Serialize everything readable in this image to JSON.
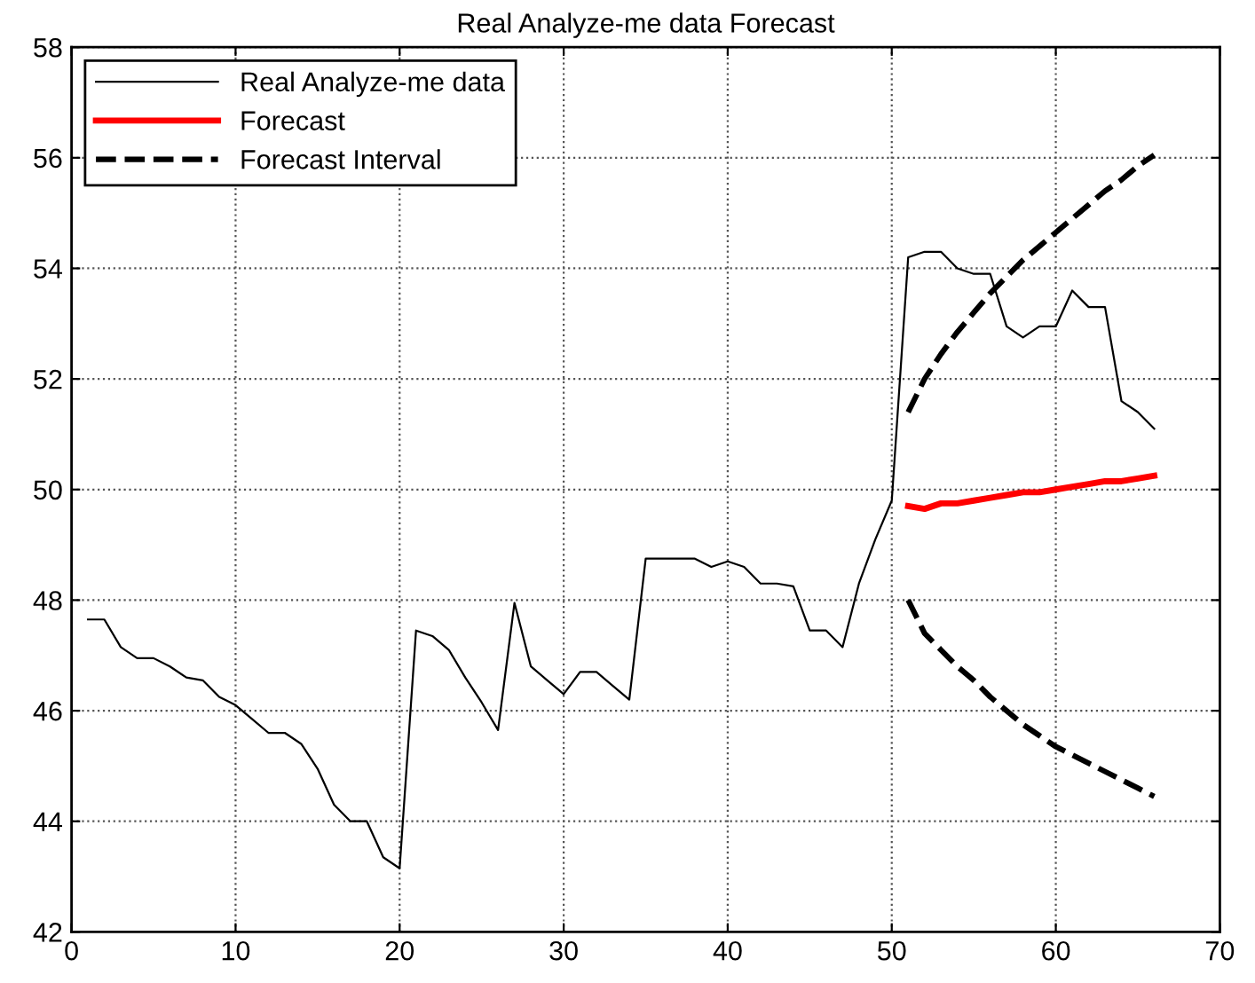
{
  "chart_data": {
    "type": "line",
    "title": "Real Analyze-me data Forecast",
    "xlim": [
      0,
      70
    ],
    "ylim": [
      42,
      58
    ],
    "xticks": [
      0,
      10,
      20,
      30,
      40,
      50,
      60,
      70
    ],
    "yticks": [
      42,
      44,
      46,
      48,
      50,
      52,
      54,
      56,
      58
    ],
    "grid": true,
    "legend": "top left",
    "series": [
      {
        "name": "Real Analyze-me data",
        "color": "#000000",
        "line_style": "solid",
        "x": [
          1,
          2,
          3,
          4,
          5,
          6,
          7,
          8,
          9,
          10,
          11,
          12,
          13,
          14,
          15,
          16,
          17,
          18,
          19,
          20,
          21,
          22,
          23,
          24,
          25,
          26,
          27,
          28,
          29,
          30,
          31,
          32,
          33,
          34,
          35,
          36,
          37,
          38,
          39,
          40,
          41,
          42,
          43,
          44,
          45,
          46,
          47,
          48,
          49,
          50,
          51,
          52,
          53,
          54,
          55,
          56,
          57,
          58,
          59,
          60,
          61,
          62,
          63,
          64,
          65,
          66
        ],
        "values": [
          47.65,
          47.65,
          47.15,
          46.95,
          46.95,
          46.8,
          46.6,
          46.55,
          46.25,
          46.1,
          45.85,
          45.6,
          45.6,
          45.4,
          44.95,
          44.3,
          44.0,
          44.0,
          43.35,
          43.15,
          47.45,
          47.35,
          47.1,
          46.6,
          46.15,
          45.65,
          47.95,
          46.8,
          46.55,
          46.3,
          46.7,
          46.7,
          46.45,
          46.2,
          48.75,
          48.75,
          48.75,
          48.75,
          48.6,
          48.7,
          48.6,
          48.3,
          48.3,
          48.25,
          47.45,
          47.45,
          47.15,
          48.3,
          49.1,
          49.8,
          54.2,
          54.3,
          54.3,
          54.0,
          53.9,
          53.9,
          52.95,
          52.75,
          52.95,
          52.95,
          53.6,
          53.3,
          53.3,
          51.6,
          51.4,
          51.1
        ]
      },
      {
        "name": "Forecast",
        "color": "#ff0000",
        "line_style": "solid",
        "x": [
          51,
          52,
          53,
          54,
          55,
          56,
          57,
          58,
          59,
          60,
          61,
          62,
          63,
          64,
          65,
          66
        ],
        "values": [
          49.7,
          49.65,
          49.75,
          49.75,
          49.8,
          49.85,
          49.9,
          49.95,
          49.95,
          50.0,
          50.05,
          50.1,
          50.15,
          50.15,
          50.2,
          50.25
        ]
      },
      {
        "name": "Forecast Interval",
        "color": "#000000",
        "line_style": "dashed",
        "x": [
          51,
          52,
          53,
          54,
          55,
          56,
          57,
          58,
          59,
          60,
          61,
          62,
          63,
          64,
          65,
          66
        ],
        "values": [
          51.4,
          52.0,
          52.45,
          52.85,
          53.2,
          53.55,
          53.85,
          54.15,
          54.4,
          54.65,
          54.9,
          55.15,
          55.4,
          55.6,
          55.85,
          56.05
        ]
      },
      {
        "color": "#000000",
        "line_style": "dashed",
        "x": [
          51,
          52,
          53,
          54,
          55,
          56,
          57,
          58,
          59,
          60,
          61,
          62,
          63,
          64,
          65,
          66
        ],
        "values": [
          48.0,
          47.4,
          47.1,
          46.8,
          46.55,
          46.25,
          46.0,
          45.75,
          45.55,
          45.35,
          45.2,
          45.05,
          44.9,
          44.75,
          44.6,
          44.45
        ]
      }
    ]
  }
}
